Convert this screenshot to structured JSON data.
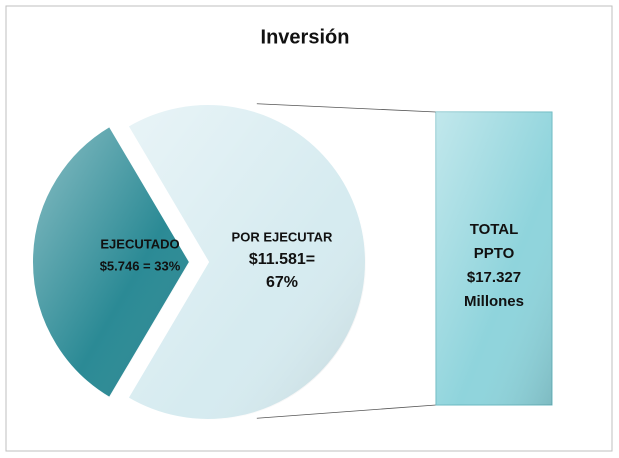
{
  "chart_data": {
    "type": "pie",
    "title": "Inversión",
    "categories": [
      "EJECUTADO",
      "POR EJECUTAR"
    ],
    "values": [
      33,
      67
    ],
    "value_labels": [
      [
        "$5.746 = 33%"
      ],
      [
        "$11.581=",
        "67%"
      ]
    ],
    "colors": [
      "#2b8a95",
      "#d6ebf0"
    ],
    "total_label": [
      "TOTAL",
      "PPTO",
      "$17.327",
      "Millones"
    ],
    "total_color": "#8fd4dc"
  }
}
